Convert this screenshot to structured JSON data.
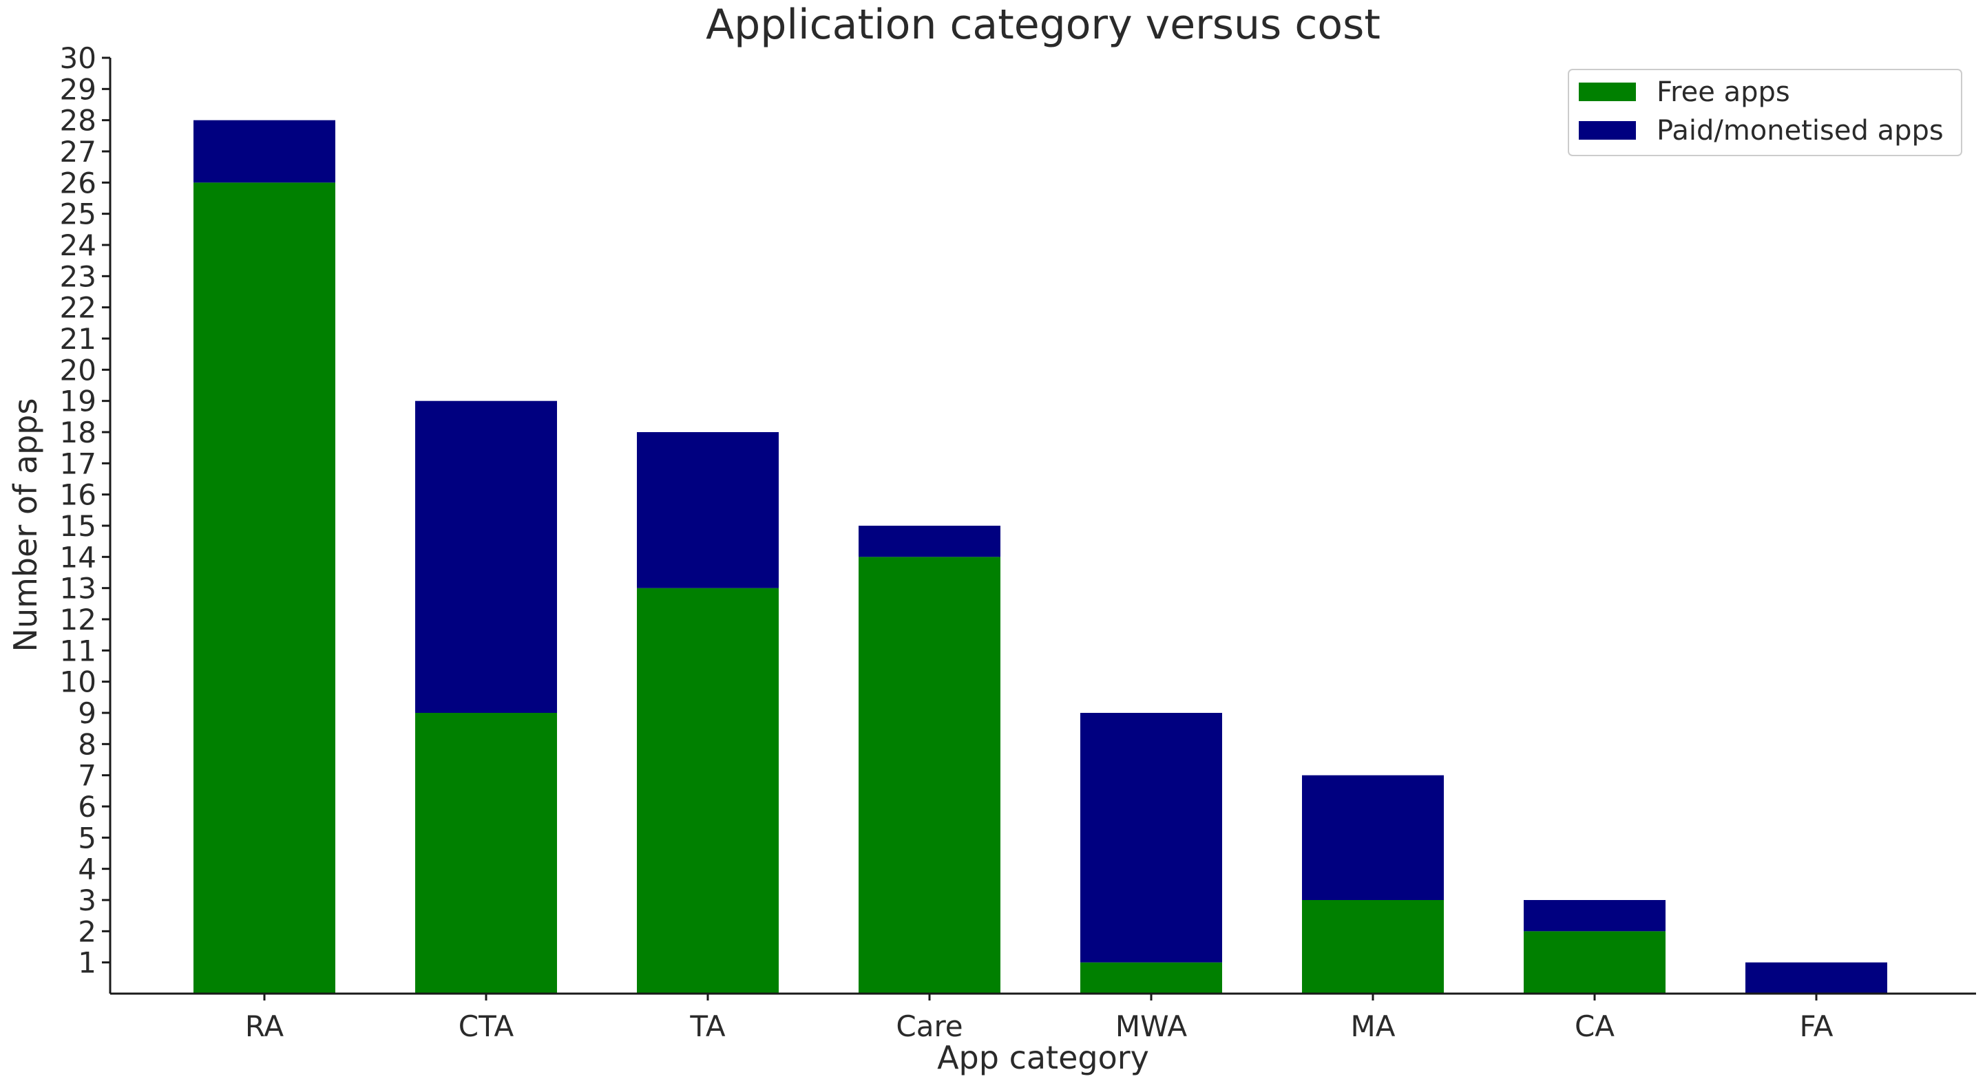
{
  "chart_data": {
    "type": "bar",
    "stacked": true,
    "title": "Application category versus cost",
    "xlabel": "App category",
    "ylabel": "Number of apps",
    "categories": [
      "RA",
      "CTA",
      "TA",
      "Care",
      "MWA",
      "MA",
      "CA",
      "FA"
    ],
    "series": [
      {
        "name": "Free apps",
        "color": "#008000",
        "values": [
          26,
          9,
          13,
          14,
          1,
          3,
          2,
          0
        ]
      },
      {
        "name": "Paid/monetised apps",
        "color": "#000080",
        "values": [
          2,
          10,
          5,
          1,
          8,
          4,
          1,
          1
        ]
      }
    ],
    "ylim": [
      0,
      30
    ],
    "yticks": [
      1,
      2,
      3,
      4,
      5,
      6,
      7,
      8,
      9,
      10,
      11,
      12,
      13,
      14,
      15,
      16,
      17,
      18,
      19,
      20,
      21,
      22,
      23,
      24,
      25,
      26,
      27,
      28,
      29,
      30
    ],
    "grid": false,
    "legend": {
      "placement": "top-right"
    }
  }
}
